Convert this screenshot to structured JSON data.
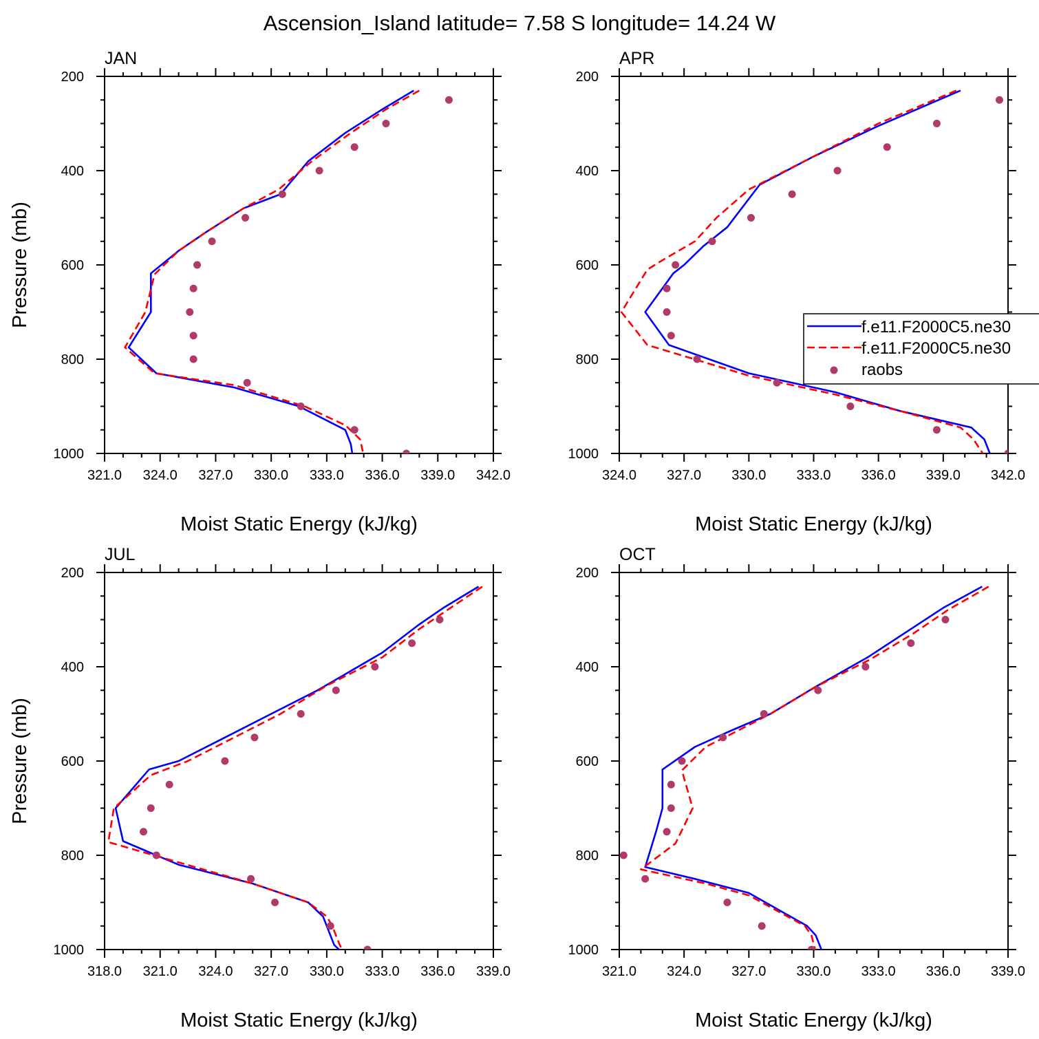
{
  "title": "Ascension_Island  latitude= 7.58 S longitude= 14.24 W",
  "colors": {
    "model1": "#0000ff",
    "model2": "#ff0000",
    "raobs": "#b03a6a"
  },
  "legend": {
    "location": "right side of APR panel, clipped at figure edge",
    "entries": [
      {
        "label": "f.e11.F2000C5.ne30",
        "style": "solid",
        "color": "#0000ff"
      },
      {
        "label": "f.e11.F2000C5.ne30",
        "style": "dashed",
        "color": "#ff0000"
      },
      {
        "label": "raobs",
        "style": "marker",
        "color": "#b03a6a"
      }
    ]
  },
  "chart_data": [
    {
      "type": "line",
      "title": "JAN",
      "xlabel": "Moist Static Energy (kJ/kg)",
      "ylabel": "Pressure (mb)",
      "xlim": [
        321,
        342
      ],
      "ylim": [
        1000,
        200
      ],
      "y_reversed": true,
      "xticks": [
        "321.0",
        "324.0",
        "327.0",
        "330.0",
        "333.0",
        "336.0",
        "339.0",
        "342.0"
      ],
      "yticks": [
        "200",
        "400",
        "600",
        "800",
        "1000"
      ],
      "series": [
        {
          "name": "f.e11.F2000C5.ne30",
          "style": "solid",
          "points": [
            [
              337.7,
              230
            ],
            [
              336.0,
              270
            ],
            [
              334.0,
              320
            ],
            [
              332.0,
              380
            ],
            [
              330.5,
              450
            ],
            [
              328.5,
              480
            ],
            [
              326.5,
              530
            ],
            [
              325.0,
              570
            ],
            [
              323.5,
              618
            ],
            [
              323.5,
              700
            ],
            [
              322.3,
              775
            ],
            [
              323.8,
              830
            ],
            [
              328.0,
              860
            ],
            [
              331.5,
              900
            ],
            [
              334.0,
              950
            ],
            [
              334.3,
              980
            ],
            [
              334.4,
              1005
            ]
          ]
        },
        {
          "name": "f.e11.F2000C5.ne30",
          "style": "dashed",
          "points": [
            [
              338.0,
              230
            ],
            [
              336.2,
              270
            ],
            [
              334.3,
              320
            ],
            [
              332.2,
              380
            ],
            [
              330.4,
              440
            ],
            [
              328.5,
              480
            ],
            [
              326.5,
              530
            ],
            [
              325.0,
              570
            ],
            [
              323.7,
              620
            ],
            [
              323.2,
              700
            ],
            [
              322.1,
              775
            ],
            [
              323.7,
              830
            ],
            [
              328.0,
              855
            ],
            [
              331.8,
              900
            ],
            [
              334.0,
              940
            ],
            [
              334.8,
              970
            ],
            [
              335.0,
              1005
            ]
          ]
        },
        {
          "name": "raobs",
          "style": "marker",
          "points": [
            [
              339.6,
              250
            ],
            [
              336.2,
              300
            ],
            [
              334.5,
              350
            ],
            [
              332.6,
              400
            ],
            [
              330.6,
              450
            ],
            [
              328.6,
              500
            ],
            [
              326.8,
              550
            ],
            [
              326.0,
              600
            ],
            [
              325.8,
              650
            ],
            [
              325.6,
              700
            ],
            [
              325.8,
              750
            ],
            [
              325.8,
              800
            ],
            [
              328.7,
              850
            ],
            [
              331.6,
              900
            ],
            [
              334.5,
              950
            ],
            [
              337.3,
              1000
            ]
          ]
        }
      ]
    },
    {
      "type": "line",
      "title": "APR",
      "xlabel": "Moist Static Energy (kJ/kg)",
      "ylabel": "",
      "xlim": [
        324,
        342
      ],
      "ylim": [
        1000,
        200
      ],
      "y_reversed": true,
      "xticks": [
        "324.0",
        "327.0",
        "330.0",
        "333.0",
        "336.0",
        "339.0",
        "342.0"
      ],
      "yticks": [
        "200",
        "400",
        "600",
        "800",
        "1000"
      ],
      "series": [
        {
          "name": "f.e11.F2000C5.ne30",
          "style": "solid",
          "points": [
            [
              339.8,
              230
            ],
            [
              336.0,
              305
            ],
            [
              333.0,
              370
            ],
            [
              330.5,
              430
            ],
            [
              329.0,
              520
            ],
            [
              327.9,
              560
            ],
            [
              327.0,
              600
            ],
            [
              326.5,
              618
            ],
            [
              325.2,
              700
            ],
            [
              326.3,
              770
            ],
            [
              330.0,
              830
            ],
            [
              334.0,
              870
            ],
            [
              337.0,
              910
            ],
            [
              340.3,
              945
            ],
            [
              340.9,
              970
            ],
            [
              341.2,
              1005
            ]
          ]
        },
        {
          "name": "f.e11.F2000C5.ne30",
          "style": "dashed",
          "points": [
            [
              339.6,
              230
            ],
            [
              336.0,
              300
            ],
            [
              333.0,
              370
            ],
            [
              330.0,
              440
            ],
            [
              328.5,
              500
            ],
            [
              327.5,
              550
            ],
            [
              326.0,
              590
            ],
            [
              325.3,
              610
            ],
            [
              324.1,
              700
            ],
            [
              325.3,
              770
            ],
            [
              330.0,
              835
            ],
            [
              334.0,
              875
            ],
            [
              337.0,
              910
            ],
            [
              339.8,
              945
            ],
            [
              340.4,
              970
            ],
            [
              340.9,
              1005
            ]
          ]
        },
        {
          "name": "raobs",
          "style": "marker",
          "points": [
            [
              341.6,
              250
            ],
            [
              338.7,
              300
            ],
            [
              336.4,
              350
            ],
            [
              334.1,
              400
            ],
            [
              332.0,
              450
            ],
            [
              330.1,
              500
            ],
            [
              328.3,
              550
            ],
            [
              326.6,
              600
            ],
            [
              326.2,
              650
            ],
            [
              326.2,
              700
            ],
            [
              326.4,
              750
            ],
            [
              327.6,
              800
            ],
            [
              331.3,
              850
            ],
            [
              334.7,
              900
            ],
            [
              338.7,
              950
            ],
            [
              342.0,
              1000
            ]
          ]
        }
      ]
    },
    {
      "type": "line",
      "title": "JUL",
      "xlabel": "Moist Static Energy (kJ/kg)",
      "ylabel": "Pressure (mb)",
      "xlim": [
        318,
        339
      ],
      "ylim": [
        1000,
        200
      ],
      "y_reversed": true,
      "xticks": [
        "318.0",
        "321.0",
        "324.0",
        "327.0",
        "330.0",
        "333.0",
        "336.0",
        "339.0"
      ],
      "yticks": [
        "200",
        "400",
        "600",
        "800",
        "1000"
      ],
      "series": [
        {
          "name": "f.e11.F2000C5.ne30",
          "style": "solid",
          "points": [
            [
              338.2,
              230
            ],
            [
              336.3,
              275
            ],
            [
              335.0,
              310
            ],
            [
              333.0,
              370
            ],
            [
              329.5,
              450
            ],
            [
              327.0,
              500
            ],
            [
              324.5,
              550
            ],
            [
              322.0,
              600
            ],
            [
              320.4,
              618
            ],
            [
              318.6,
              700
            ],
            [
              319.0,
              770
            ],
            [
              322.0,
              820
            ],
            [
              326.0,
              860
            ],
            [
              329.0,
              900
            ],
            [
              329.8,
              930
            ],
            [
              330.0,
              950
            ],
            [
              330.4,
              990
            ],
            [
              330.8,
              1005
            ]
          ]
        },
        {
          "name": "f.e11.F2000C5.ne30",
          "style": "dashed",
          "points": [
            [
              338.4,
              230
            ],
            [
              336.5,
              280
            ],
            [
              335.0,
              320
            ],
            [
              333.0,
              380
            ],
            [
              330.0,
              440
            ],
            [
              327.5,
              500
            ],
            [
              325.0,
              550
            ],
            [
              322.5,
              600
            ],
            [
              320.5,
              630
            ],
            [
              318.5,
              700
            ],
            [
              318.2,
              772
            ],
            [
              322.0,
              815
            ],
            [
              326.0,
              860
            ],
            [
              329.0,
              900
            ],
            [
              330.0,
              930
            ],
            [
              330.3,
              950
            ],
            [
              330.7,
              990
            ],
            [
              330.9,
              1005
            ]
          ]
        },
        {
          "name": "raobs",
          "style": "marker",
          "points": [
            [
              336.1,
              300
            ],
            [
              334.6,
              350
            ],
            [
              332.6,
              400
            ],
            [
              330.5,
              450
            ],
            [
              328.6,
              500
            ],
            [
              326.1,
              550
            ],
            [
              324.5,
              600
            ],
            [
              321.5,
              650
            ],
            [
              320.5,
              700
            ],
            [
              320.1,
              750
            ],
            [
              320.8,
              800
            ],
            [
              325.9,
              850
            ],
            [
              327.2,
              900
            ],
            [
              330.2,
              950
            ],
            [
              332.2,
              1000
            ]
          ]
        }
      ]
    },
    {
      "type": "line",
      "title": "OCT",
      "xlabel": "Moist Static Energy (kJ/kg)",
      "ylabel": "",
      "xlim": [
        321,
        339
      ],
      "ylim": [
        1000,
        200
      ],
      "y_reversed": true,
      "xticks": [
        "321.0",
        "324.0",
        "327.0",
        "330.0",
        "333.0",
        "336.0",
        "339.0"
      ],
      "yticks": [
        "200",
        "400",
        "600",
        "800",
        "1000"
      ],
      "series": [
        {
          "name": "f.e11.F2000C5.ne30",
          "style": "solid",
          "points": [
            [
              337.8,
              230
            ],
            [
              336.0,
              275
            ],
            [
              334.5,
              320
            ],
            [
              332.5,
              380
            ],
            [
              330.0,
              445
            ],
            [
              328.0,
              500
            ],
            [
              326.2,
              535
            ],
            [
              324.5,
              570
            ],
            [
              323.0,
              618
            ],
            [
              323.0,
              700
            ],
            [
              322.7,
              750
            ],
            [
              322.2,
              825
            ],
            [
              324.5,
              850
            ],
            [
              327.0,
              880
            ],
            [
              329.7,
              950
            ],
            [
              330.1,
              970
            ],
            [
              330.4,
              1005
            ]
          ]
        },
        {
          "name": "f.e11.F2000C5.ne30",
          "style": "dashed",
          "points": [
            [
              338.1,
              230
            ],
            [
              336.2,
              280
            ],
            [
              334.6,
              330
            ],
            [
              332.6,
              385
            ],
            [
              330.2,
              440
            ],
            [
              328.0,
              500
            ],
            [
              326.3,
              540
            ],
            [
              325.0,
              570
            ],
            [
              323.9,
              620
            ],
            [
              324.4,
              700
            ],
            [
              323.6,
              775
            ],
            [
              322.0,
              830
            ],
            [
              325.0,
              860
            ],
            [
              327.0,
              885
            ],
            [
              329.6,
              950
            ],
            [
              329.9,
              970
            ],
            [
              330.1,
              1005
            ]
          ]
        },
        {
          "name": "raobs",
          "style": "marker",
          "points": [
            [
              336.1,
              300
            ],
            [
              334.5,
              350
            ],
            [
              332.4,
              400
            ],
            [
              330.2,
              450
            ],
            [
              327.7,
              500
            ],
            [
              325.8,
              550
            ],
            [
              323.9,
              600
            ],
            [
              323.4,
              650
            ],
            [
              323.4,
              700
            ],
            [
              323.2,
              750
            ],
            [
              321.2,
              800
            ],
            [
              322.2,
              850
            ],
            [
              326.0,
              900
            ],
            [
              327.6,
              950
            ],
            [
              329.9,
              1000
            ]
          ]
        }
      ]
    }
  ]
}
